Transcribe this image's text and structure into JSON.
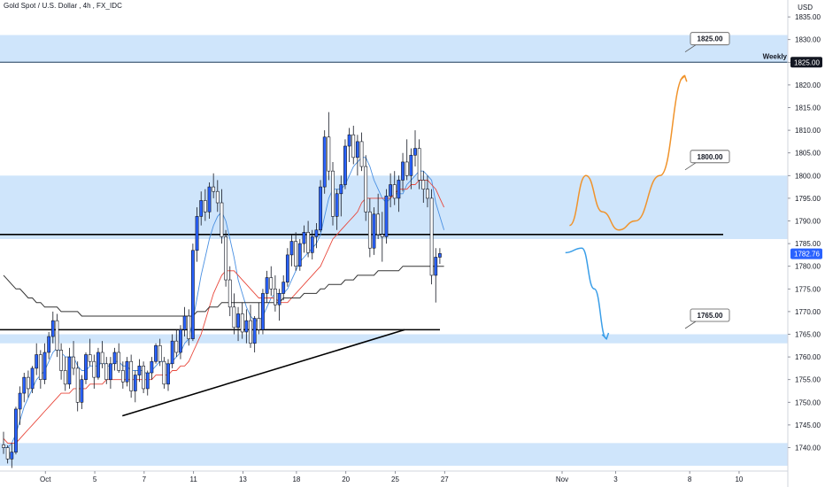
{
  "header": {
    "symbol": "Gold Spot / U.S. Dollar",
    "interval": "4h",
    "exchange": "FX_IDC",
    "currency": "USD"
  },
  "colors": {
    "up_candle": "#2962ff",
    "down_candle": "#ffffff",
    "candle_outline": "#131722",
    "zone_fill": "#cfe5fb",
    "ma_fast": "#4a90e2",
    "ma_mid": "#e8473b",
    "ma_slow": "#333333",
    "arrow_up": "#f0932b",
    "arrow_down": "#3a9ee8",
    "price_badge": "#2962ff"
  },
  "annotations": {
    "weekly_label": "Weekly",
    "level_labels": [
      "1825.00",
      "1800.00",
      "1765.00"
    ],
    "price_tags": [
      "1825.00",
      "1782.76"
    ]
  },
  "chart_data": {
    "type": "candlestick",
    "title": "",
    "xlabel": "",
    "ylabel": "",
    "ylim": [
      1735,
      1836
    ],
    "y_ticks": [
      1740,
      1745,
      1750,
      1755,
      1760,
      1765,
      1770,
      1775,
      1780,
      1785,
      1790,
      1795,
      1800,
      1805,
      1810,
      1815,
      1820,
      1825,
      1830,
      1835
    ],
    "y_tick_labels": [
      "1740.00",
      "1745.00",
      "1750.00",
      "1755.00",
      "1760.00",
      "1765.00",
      "1770.00",
      "1775.00",
      "1780.00",
      "1785.00",
      "1790.00",
      "1795.00",
      "1800.00",
      "1805.00",
      "1810.00",
      "1815.00",
      "1820.00",
      "1825.00",
      "1830.00",
      "1835.00"
    ],
    "x_ticks": [
      {
        "label": "Oct",
        "bar": 5
      },
      {
        "label": "5",
        "bar": 17
      },
      {
        "label": "7",
        "bar": 29
      },
      {
        "label": "11",
        "bar": 41
      },
      {
        "label": "13",
        "bar": 53
      },
      {
        "label": "18",
        "bar": 66
      },
      {
        "label": "20",
        "bar": 78
      },
      {
        "label": "25",
        "bar": 90
      },
      {
        "label": "27",
        "bar": 102
      },
      {
        "label": "Nov",
        "bar": 120
      },
      {
        "label": "3",
        "bar": 133
      },
      {
        "label": "8",
        "bar": 151
      },
      {
        "label": "10",
        "bar": 163
      }
    ],
    "candles_ohlc": [
      [
        1740.6,
        1743.5,
        1738.6,
        1740.0
      ],
      [
        1740.0,
        1740.5,
        1736.5,
        1737.5
      ],
      [
        1737.5,
        1741.0,
        1735.5,
        1739.0
      ],
      [
        1739.0,
        1749.0,
        1738.5,
        1748.5
      ],
      [
        1748.5,
        1753.5,
        1745.0,
        1752.0
      ],
      [
        1752.0,
        1756.5,
        1750.0,
        1755.5
      ],
      [
        1755.5,
        1757.0,
        1751.0,
        1753.0
      ],
      [
        1753.0,
        1758.0,
        1752.0,
        1757.5
      ],
      [
        1757.5,
        1763.0,
        1756.0,
        1760.5
      ],
      [
        1760.5,
        1761.5,
        1753.0,
        1755.0
      ],
      [
        1755.0,
        1763.0,
        1754.0,
        1761.0
      ],
      [
        1761.0,
        1765.5,
        1759.5,
        1764.5
      ],
      [
        1764.5,
        1770.0,
        1763.0,
        1768.0
      ],
      [
        1768.0,
        1769.5,
        1760.0,
        1761.5
      ],
      [
        1761.5,
        1763.0,
        1755.0,
        1757.0
      ],
      [
        1757.0,
        1760.0,
        1752.5,
        1754.0
      ],
      [
        1754.0,
        1762.0,
        1753.0,
        1760.0
      ],
      [
        1760.0,
        1763.5,
        1756.0,
        1757.5
      ],
      [
        1757.5,
        1759.0,
        1748.0,
        1750.0
      ],
      [
        1750.0,
        1756.0,
        1748.5,
        1755.0
      ],
      [
        1755.0,
        1761.0,
        1754.0,
        1760.5
      ],
      [
        1760.5,
        1764.0,
        1758.0,
        1759.0
      ],
      [
        1759.0,
        1760.5,
        1753.0,
        1755.5
      ],
      [
        1755.5,
        1762.0,
        1755.0,
        1761.0
      ],
      [
        1761.0,
        1763.5,
        1757.5,
        1758.5
      ],
      [
        1758.5,
        1760.0,
        1754.0,
        1755.0
      ],
      [
        1755.0,
        1760.0,
        1753.0,
        1758.5
      ],
      [
        1758.5,
        1762.0,
        1757.0,
        1761.0
      ],
      [
        1761.0,
        1763.0,
        1756.5,
        1757.0
      ],
      [
        1757.0,
        1759.0,
        1753.0,
        1754.5
      ],
      [
        1754.5,
        1760.0,
        1753.5,
        1759.0
      ],
      [
        1759.0,
        1760.5,
        1751.0,
        1752.5
      ],
      [
        1752.5,
        1757.0,
        1750.0,
        1756.0
      ],
      [
        1756.0,
        1759.5,
        1754.5,
        1758.0
      ],
      [
        1758.0,
        1759.0,
        1752.0,
        1753.0
      ],
      [
        1753.0,
        1757.0,
        1751.5,
        1756.5
      ],
      [
        1756.5,
        1760.0,
        1755.0,
        1759.0
      ],
      [
        1759.0,
        1763.0,
        1758.5,
        1762.5
      ],
      [
        1762.5,
        1764.0,
        1758.0,
        1759.0
      ],
      [
        1759.0,
        1760.0,
        1753.0,
        1754.0
      ],
      [
        1754.0,
        1759.5,
        1752.5,
        1758.5
      ],
      [
        1758.5,
        1765.0,
        1757.5,
        1763.5
      ],
      [
        1763.5,
        1766.0,
        1760.0,
        1761.0
      ],
      [
        1761.0,
        1767.0,
        1759.5,
        1766.0
      ],
      [
        1766.0,
        1771.0,
        1764.5,
        1769.0
      ],
      [
        1769.0,
        1770.5,
        1762.5,
        1764.0
      ],
      [
        1764.0,
        1785.0,
        1763.5,
        1783.5
      ],
      [
        1783.5,
        1793.0,
        1781.0,
        1791.0
      ],
      [
        1791.0,
        1796.5,
        1789.0,
        1794.5
      ],
      [
        1794.5,
        1797.0,
        1790.0,
        1792.0
      ],
      [
        1792.0,
        1798.5,
        1790.5,
        1797.5
      ],
      [
        1797.5,
        1800.5,
        1795.0,
        1796.5
      ],
      [
        1796.5,
        1799.0,
        1792.0,
        1794.0
      ],
      [
        1794.0,
        1797.0,
        1785.0,
        1786.5
      ],
      [
        1786.5,
        1788.0,
        1775.5,
        1777.0
      ],
      [
        1777.0,
        1780.0,
        1769.0,
        1771.0
      ],
      [
        1771.0,
        1774.0,
        1765.0,
        1766.5
      ],
      [
        1766.5,
        1771.0,
        1763.5,
        1769.5
      ],
      [
        1769.5,
        1772.0,
        1764.0,
        1765.5
      ],
      [
        1765.5,
        1770.5,
        1763.0,
        1768.0
      ],
      [
        1768.0,
        1771.5,
        1762.0,
        1763.0
      ],
      [
        1763.0,
        1769.0,
        1761.0,
        1768.5
      ],
      [
        1768.5,
        1772.0,
        1765.0,
        1766.0
      ],
      [
        1766.0,
        1775.0,
        1765.0,
        1774.0
      ],
      [
        1774.0,
        1779.0,
        1772.0,
        1777.5
      ],
      [
        1777.5,
        1780.0,
        1773.5,
        1775.0
      ],
      [
        1775.0,
        1778.0,
        1770.0,
        1771.5
      ],
      [
        1771.5,
        1775.0,
        1768.0,
        1774.0
      ],
      [
        1774.0,
        1778.0,
        1772.5,
        1776.5
      ],
      [
        1776.5,
        1784.0,
        1775.5,
        1782.5
      ],
      [
        1782.5,
        1787.0,
        1780.0,
        1785.5
      ],
      [
        1785.5,
        1787.5,
        1779.0,
        1780.0
      ],
      [
        1780.0,
        1786.0,
        1779.0,
        1785.0
      ],
      [
        1785.0,
        1789.0,
        1783.0,
        1787.5
      ],
      [
        1787.5,
        1790.0,
        1782.0,
        1783.0
      ],
      [
        1783.0,
        1788.0,
        1781.5,
        1786.5
      ],
      [
        1786.5,
        1789.5,
        1784.0,
        1788.0
      ],
      [
        1788.0,
        1799.0,
        1787.5,
        1797.5
      ],
      [
        1797.5,
        1810.0,
        1796.0,
        1808.5
      ],
      [
        1808.5,
        1814.0,
        1799.0,
        1801.0
      ],
      [
        1801.0,
        1803.0,
        1789.0,
        1791.0
      ],
      [
        1791.0,
        1797.0,
        1788.0,
        1796.0
      ],
      [
        1796.0,
        1800.0,
        1791.0,
        1798.0
      ],
      [
        1798.0,
        1808.0,
        1797.0,
        1806.5
      ],
      [
        1806.5,
        1810.5,
        1803.0,
        1809.0
      ],
      [
        1809.0,
        1811.0,
        1802.5,
        1804.0
      ],
      [
        1804.0,
        1809.0,
        1800.0,
        1807.5
      ],
      [
        1807.5,
        1809.5,
        1801.0,
        1802.0
      ],
      [
        1802.0,
        1804.5,
        1790.0,
        1792.0
      ],
      [
        1792.0,
        1795.0,
        1782.0,
        1784.0
      ],
      [
        1784.0,
        1793.0,
        1782.5,
        1791.5
      ],
      [
        1791.5,
        1796.0,
        1786.0,
        1787.0
      ],
      [
        1787.0,
        1792.0,
        1781.0,
        1786.5
      ],
      [
        1786.5,
        1797.0,
        1785.0,
        1795.5
      ],
      [
        1795.5,
        1800.5,
        1793.0,
        1798.0
      ],
      [
        1798.0,
        1801.0,
        1793.5,
        1795.0
      ],
      [
        1795.0,
        1800.0,
        1792.0,
        1799.0
      ],
      [
        1799.0,
        1805.0,
        1796.5,
        1803.0
      ],
      [
        1803.0,
        1808.0,
        1799.0,
        1800.0
      ],
      [
        1800.0,
        1806.0,
        1797.0,
        1804.5
      ],
      [
        1804.5,
        1810.0,
        1802.0,
        1806.0
      ],
      [
        1806.0,
        1808.0,
        1797.0,
        1799.0
      ],
      [
        1799.0,
        1801.0,
        1794.0,
        1797.0
      ],
      [
        1797.0,
        1800.0,
        1793.0,
        1795.0
      ],
      [
        1795.0,
        1797.0,
        1776.0,
        1778.0
      ],
      [
        1778.0,
        1784.0,
        1772.0,
        1782.0
      ],
      [
        1782.0,
        1784.0,
        1780.5,
        1782.8
      ]
    ],
    "series": [
      {
        "values": [
          1740,
          1740,
          1741,
          1743,
          1746,
          1749,
          1751,
          1753,
          1755,
          1756,
          1757,
          1759,
          1761,
          1762,
          1761,
          1760,
          1760,
          1760,
          1758,
          1757,
          1757,
          1758,
          1758,
          1758,
          1759,
          1758,
          1758,
          1759,
          1759,
          1758,
          1758,
          1757,
          1757,
          1757,
          1757,
          1756,
          1757,
          1758,
          1759,
          1759,
          1758,
          1759,
          1760,
          1761,
          1763,
          1764,
          1768,
          1773,
          1778,
          1782,
          1786,
          1789,
          1791,
          1792,
          1790,
          1786,
          1782,
          1777,
          1774,
          1771,
          1769,
          1768,
          1768,
          1769,
          1771,
          1773,
          1774,
          1774,
          1774,
          1775,
          1777,
          1779,
          1781,
          1782,
          1783,
          1784,
          1785,
          1787,
          1791,
          1795,
          1797,
          1797,
          1797,
          1798,
          1800,
          1802,
          1803,
          1804,
          1804,
          1802,
          1799,
          1797,
          1795,
          1794,
          1795,
          1796,
          1796,
          1796,
          1798,
          1799,
          1800,
          1801,
          1801,
          1800,
          1799,
          1794,
          1791,
          1788
        ]
      },
      {
        "values": [
          1742,
          1741,
          1741,
          1741,
          1742,
          1743,
          1744,
          1745,
          1746,
          1747,
          1748,
          1749,
          1750,
          1751,
          1752,
          1752,
          1752,
          1753,
          1753,
          1753,
          1753,
          1754,
          1754,
          1754,
          1754,
          1755,
          1755,
          1755,
          1755,
          1755,
          1755,
          1755,
          1755,
          1755,
          1755,
          1755,
          1755,
          1756,
          1756,
          1756,
          1756,
          1757,
          1757,
          1758,
          1758,
          1759,
          1761,
          1763,
          1765,
          1768,
          1771,
          1774,
          1776,
          1778,
          1779,
          1779,
          1779,
          1778,
          1777,
          1776,
          1775,
          1774,
          1773,
          1773,
          1773,
          1773,
          1773,
          1772,
          1772,
          1772,
          1773,
          1774,
          1775,
          1776,
          1777,
          1778,
          1779,
          1780,
          1782,
          1784,
          1786,
          1787,
          1788,
          1789,
          1790,
          1791,
          1792,
          1794,
          1795,
          1795,
          1795,
          1795,
          1795,
          1795,
          1795,
          1796,
          1797,
          1797,
          1797,
          1798,
          1798,
          1799,
          1799,
          1799,
          1798,
          1797,
          1795,
          1793
        ]
      },
      {
        "values": [
          1778,
          1777,
          1776,
          1775,
          1775,
          1774,
          1773,
          1773,
          1772,
          1772,
          1771,
          1771,
          1771,
          1771,
          1770,
          1770,
          1770,
          1770,
          1770,
          1769,
          1769,
          1769,
          1769,
          1769,
          1769,
          1769,
          1769,
          1769,
          1769,
          1769,
          1769,
          1769,
          1769,
          1769,
          1769,
          1769,
          1769,
          1769,
          1769,
          1769,
          1769,
          1769,
          1769,
          1769,
          1769,
          1769,
          1769,
          1770,
          1770,
          1770,
          1771,
          1771,
          1771,
          1772,
          1772,
          1772,
          1772,
          1772,
          1772,
          1772,
          1772,
          1772,
          1772,
          1772,
          1772,
          1772,
          1772,
          1772,
          1773,
          1773,
          1773,
          1773,
          1773,
          1774,
          1774,
          1774,
          1774,
          1775,
          1775,
          1776,
          1776,
          1776,
          1776,
          1777,
          1777,
          1777,
          1778,
          1778,
          1778,
          1778,
          1778,
          1779,
          1779,
          1779,
          1779,
          1779,
          1779,
          1780,
          1780,
          1780,
          1780,
          1780,
          1780,
          1780,
          1780,
          1780,
          1780,
          1780
        ]
      }
    ],
    "zones": [
      {
        "from": 1825,
        "to": 1831
      },
      {
        "from": 1786,
        "to": 1800
      },
      {
        "from": 1763,
        "to": 1765
      },
      {
        "from": 1736,
        "to": 1741
      }
    ],
    "levels": [
      {
        "price": 1825,
        "label": "1825.00",
        "name": "Weekly"
      },
      {
        "price": 1787,
        "label": ""
      },
      {
        "price": 1766,
        "label": ""
      }
    ],
    "trendline": {
      "from": {
        "bar": 25,
        "price": 1747
      },
      "to": {
        "bar": 91,
        "price": 1766
      }
    },
    "callouts": [
      {
        "label": "1825.00",
        "price": 1830,
        "bar": 147
      },
      {
        "label": "1800.00",
        "price": 1804,
        "bar": 147
      },
      {
        "label": "1765.00",
        "price": 1769,
        "bar": 147
      }
    ],
    "projection_up": [
      [
        116,
        1789
      ],
      [
        120,
        1800
      ],
      [
        124,
        1792
      ],
      [
        128,
        1788
      ],
      [
        132,
        1790
      ],
      [
        138,
        1800
      ],
      [
        144,
        1822
      ]
    ],
    "projection_down": [
      [
        115,
        1783
      ],
      [
        119,
        1784
      ],
      [
        122,
        1775
      ],
      [
        125,
        1764
      ]
    ],
    "last_price": 1782.76,
    "legend": "none",
    "grid": false
  }
}
